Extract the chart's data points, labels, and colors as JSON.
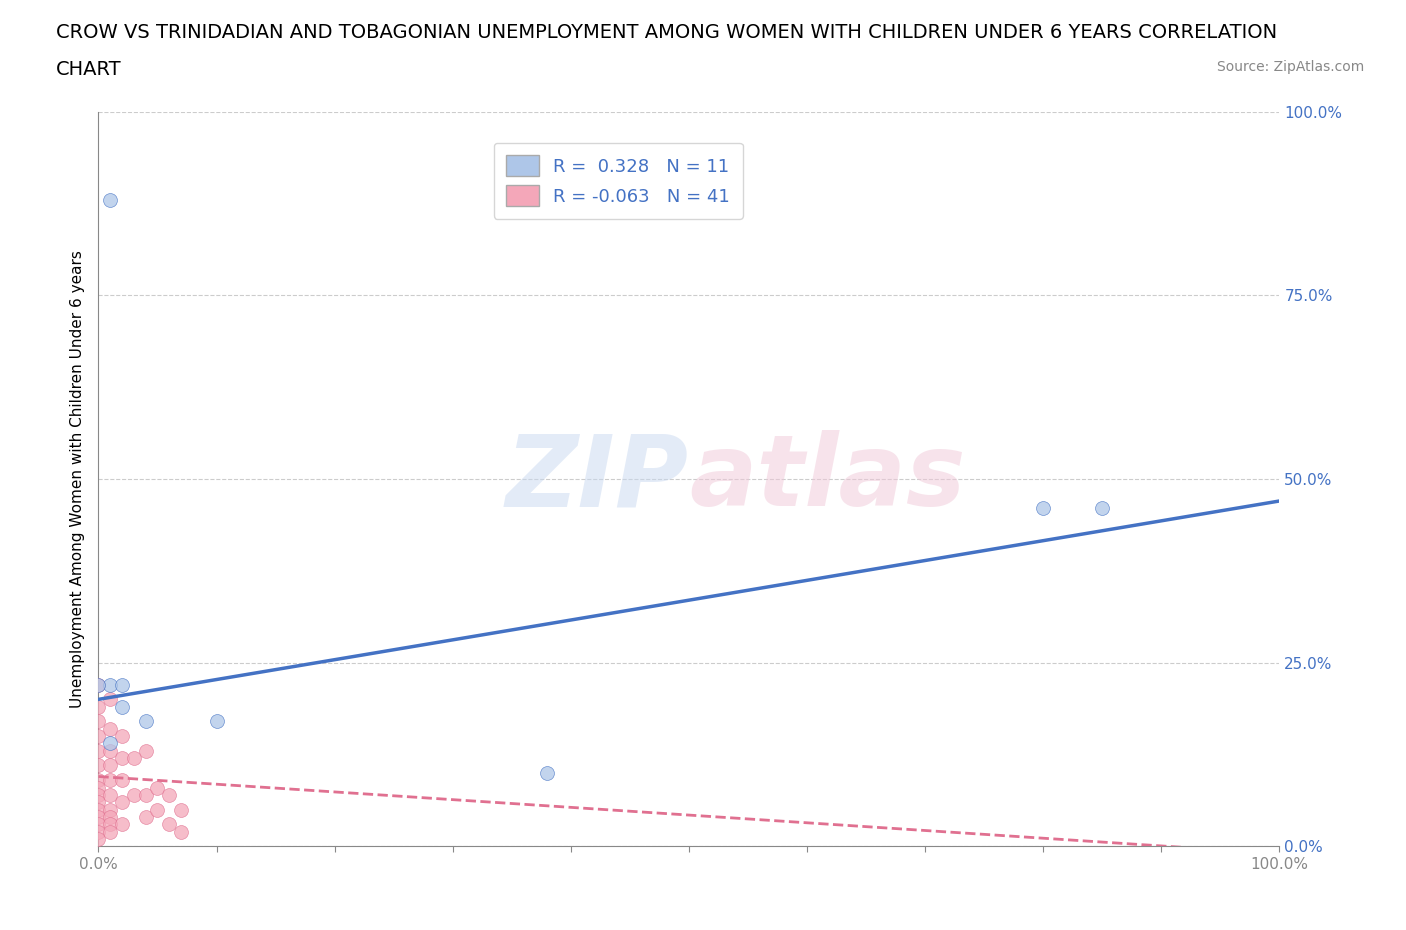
{
  "title_line1": "CROW VS TRINIDADIAN AND TOBAGONIAN UNEMPLOYMENT AMONG WOMEN WITH CHILDREN UNDER 6 YEARS CORRELATION",
  "title_line2": "CHART",
  "source": "Source: ZipAtlas.com",
  "ylabel": "Unemployment Among Women with Children Under 6 years",
  "crow_R": 0.328,
  "crow_N": 11,
  "tt_R": -0.063,
  "tt_N": 41,
  "crow_color": "#aec6e8",
  "crow_line_color": "#4472c4",
  "tt_color": "#f4a7b9",
  "tt_line_color": "#e07090",
  "background_color": "#ffffff",
  "crow_points": [
    [
      0.01,
      0.88
    ],
    [
      0.01,
      0.22
    ],
    [
      0.02,
      0.22
    ],
    [
      0.02,
      0.19
    ],
    [
      0.04,
      0.17
    ],
    [
      0.1,
      0.17
    ],
    [
      0.38,
      0.1
    ],
    [
      0.8,
      0.46
    ],
    [
      0.85,
      0.46
    ],
    [
      0.01,
      0.14
    ],
    [
      0.0,
      0.22
    ]
  ],
  "tt_points": [
    [
      0.0,
      0.22
    ],
    [
      0.0,
      0.19
    ],
    [
      0.0,
      0.17
    ],
    [
      0.0,
      0.15
    ],
    [
      0.0,
      0.13
    ],
    [
      0.0,
      0.11
    ],
    [
      0.0,
      0.09
    ],
    [
      0.0,
      0.08
    ],
    [
      0.0,
      0.07
    ],
    [
      0.0,
      0.06
    ],
    [
      0.0,
      0.05
    ],
    [
      0.0,
      0.04
    ],
    [
      0.0,
      0.03
    ],
    [
      0.0,
      0.02
    ],
    [
      0.0,
      0.01
    ],
    [
      0.01,
      0.2
    ],
    [
      0.01,
      0.16
    ],
    [
      0.01,
      0.13
    ],
    [
      0.01,
      0.11
    ],
    [
      0.01,
      0.09
    ],
    [
      0.01,
      0.07
    ],
    [
      0.01,
      0.05
    ],
    [
      0.01,
      0.04
    ],
    [
      0.01,
      0.03
    ],
    [
      0.01,
      0.02
    ],
    [
      0.02,
      0.15
    ],
    [
      0.02,
      0.12
    ],
    [
      0.02,
      0.09
    ],
    [
      0.02,
      0.06
    ],
    [
      0.02,
      0.03
    ],
    [
      0.03,
      0.12
    ],
    [
      0.03,
      0.07
    ],
    [
      0.04,
      0.13
    ],
    [
      0.04,
      0.07
    ],
    [
      0.04,
      0.04
    ],
    [
      0.05,
      0.08
    ],
    [
      0.05,
      0.05
    ],
    [
      0.06,
      0.07
    ],
    [
      0.06,
      0.03
    ],
    [
      0.07,
      0.05
    ],
    [
      0.07,
      0.02
    ]
  ],
  "ylim": [
    0,
    1.0
  ],
  "xlim": [
    0,
    1.0
  ],
  "ytick_vals": [
    0,
    0.25,
    0.5,
    0.75,
    1.0
  ],
  "ytick_labels": [
    "0.0%",
    "25.0%",
    "50.0%",
    "75.0%",
    "100.0%"
  ],
  "xtick_vals": [
    0,
    0.1,
    0.2,
    0.3,
    0.4,
    0.5,
    0.6,
    0.7,
    0.8,
    0.9,
    1.0
  ],
  "xtick_labels": [
    "0.0%",
    "",
    "",
    "",
    "",
    "",
    "",
    "",
    "",
    "",
    "100.0%"
  ],
  "title_fontsize": 14,
  "axis_label_fontsize": 11,
  "tick_fontsize": 11,
  "legend_fontsize": 13,
  "source_fontsize": 10,
  "marker_size": 100,
  "crow_line_intercept": 0.2,
  "crow_line_slope": 0.27,
  "tt_line_intercept": 0.095,
  "tt_line_slope": -0.105
}
